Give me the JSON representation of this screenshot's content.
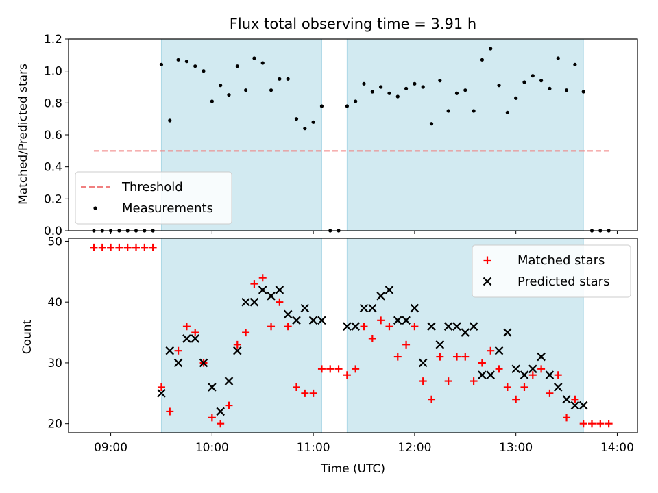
{
  "chart_data": [
    {
      "type": "scatter",
      "title": "Flux total observing time = 3.91 h",
      "ylabel": "Matched/Predicted stars",
      "xlabel": "",
      "x_unit": "time (UTC, hh:mm)",
      "xlim": [
        "08:35",
        "14:12"
      ],
      "ylim": [
        0,
        1.2
      ],
      "yticks": [
        "0.0",
        "0.2",
        "0.4",
        "0.6",
        "0.8",
        "1.0",
        "1.2"
      ],
      "grid": false,
      "legend": "lower-left",
      "shaded_intervals": [
        [
          "09:30",
          "11:05"
        ],
        [
          "11:20",
          "13:40"
        ]
      ],
      "shade_color": "#add8e6",
      "threshold": {
        "name": "Threshold",
        "value": 0.5,
        "x_range": [
          "08:50",
          "13:55"
        ],
        "color": "#f08080",
        "style": "dashed"
      },
      "series": [
        {
          "name": "Measurements",
          "color": "#000000",
          "marker": "dot",
          "points": [
            [
              "08:50",
              0
            ],
            [
              "08:55",
              0
            ],
            [
              "09:00",
              0
            ],
            [
              "09:05",
              0
            ],
            [
              "09:10",
              0
            ],
            [
              "09:15",
              0
            ],
            [
              "09:20",
              0
            ],
            [
              "09:25",
              0
            ],
            [
              "09:30",
              1.04
            ],
            [
              "09:35",
              0.69
            ],
            [
              "09:40",
              1.07
            ],
            [
              "09:45",
              1.06
            ],
            [
              "09:50",
              1.03
            ],
            [
              "09:55",
              1.0
            ],
            [
              "10:00",
              0.81
            ],
            [
              "10:05",
              0.91
            ],
            [
              "10:10",
              0.85
            ],
            [
              "10:15",
              1.03
            ],
            [
              "10:20",
              0.88
            ],
            [
              "10:25",
              1.08
            ],
            [
              "10:30",
              1.05
            ],
            [
              "10:35",
              0.88
            ],
            [
              "10:40",
              0.95
            ],
            [
              "10:45",
              0.95
            ],
            [
              "10:50",
              0.7
            ],
            [
              "10:55",
              0.64
            ],
            [
              "11:00",
              0.68
            ],
            [
              "11:05",
              0.78
            ],
            [
              "11:10",
              0
            ],
            [
              "11:15",
              0
            ],
            [
              "11:20",
              0.78
            ],
            [
              "11:25",
              0.81
            ],
            [
              "11:30",
              0.92
            ],
            [
              "11:35",
              0.87
            ],
            [
              "11:40",
              0.9
            ],
            [
              "11:45",
              0.86
            ],
            [
              "11:50",
              0.84
            ],
            [
              "11:55",
              0.89
            ],
            [
              "12:00",
              0.92
            ],
            [
              "12:05",
              0.9
            ],
            [
              "12:10",
              0.67
            ],
            [
              "12:15",
              0.94
            ],
            [
              "12:20",
              0.75
            ],
            [
              "12:25",
              0.86
            ],
            [
              "12:30",
              0.88
            ],
            [
              "12:35",
              0.75
            ],
            [
              "12:40",
              1.07
            ],
            [
              "12:45",
              1.14
            ],
            [
              "12:50",
              0.91
            ],
            [
              "12:55",
              0.74
            ],
            [
              "13:00",
              0.83
            ],
            [
              "13:05",
              0.93
            ],
            [
              "13:10",
              0.97
            ],
            [
              "13:15",
              0.94
            ],
            [
              "13:20",
              0.89
            ],
            [
              "13:25",
              1.08
            ],
            [
              "13:30",
              0.88
            ],
            [
              "13:35",
              1.04
            ],
            [
              "13:40",
              0.87
            ],
            [
              "13:45",
              0
            ],
            [
              "13:50",
              0
            ],
            [
              "13:55",
              0
            ]
          ]
        }
      ]
    },
    {
      "type": "scatter",
      "title": "",
      "ylabel": "Count",
      "xlabel": "Time (UTC)",
      "xlim": [
        "08:35",
        "14:12"
      ],
      "xticks": [
        "09:00",
        "10:00",
        "11:00",
        "12:00",
        "13:00",
        "14:00"
      ],
      "ylim": [
        18.5,
        50.5
      ],
      "yticks": [
        "20",
        "30",
        "40",
        "50"
      ],
      "grid": false,
      "legend": "top-right",
      "shaded_intervals": [
        [
          "09:30",
          "11:05"
        ],
        [
          "11:20",
          "13:40"
        ]
      ],
      "shade_color": "#add8e6",
      "series": [
        {
          "name": "Matched stars",
          "color": "#ff0000",
          "marker": "plus",
          "points": [
            [
              "08:50",
              49
            ],
            [
              "08:55",
              49
            ],
            [
              "09:00",
              49
            ],
            [
              "09:05",
              49
            ],
            [
              "09:10",
              49
            ],
            [
              "09:15",
              49
            ],
            [
              "09:20",
              49
            ],
            [
              "09:25",
              49
            ],
            [
              "09:30",
              26
            ],
            [
              "09:35",
              22
            ],
            [
              "09:40",
              32
            ],
            [
              "09:45",
              36
            ],
            [
              "09:50",
              35
            ],
            [
              "09:55",
              30
            ],
            [
              "10:00",
              21
            ],
            [
              "10:05",
              20
            ],
            [
              "10:10",
              23
            ],
            [
              "10:15",
              33
            ],
            [
              "10:20",
              35
            ],
            [
              "10:25",
              43
            ],
            [
              "10:30",
              44
            ],
            [
              "10:35",
              36
            ],
            [
              "10:40",
              40
            ],
            [
              "10:45",
              36
            ],
            [
              "10:50",
              26
            ],
            [
              "10:55",
              25
            ],
            [
              "11:00",
              25
            ],
            [
              "11:05",
              29
            ],
            [
              "11:10",
              29
            ],
            [
              "11:15",
              29
            ],
            [
              "11:20",
              28
            ],
            [
              "11:25",
              29
            ],
            [
              "11:30",
              36
            ],
            [
              "11:35",
              34
            ],
            [
              "11:40",
              37
            ],
            [
              "11:45",
              36
            ],
            [
              "11:50",
              31
            ],
            [
              "11:55",
              33
            ],
            [
              "12:00",
              36
            ],
            [
              "12:05",
              27
            ],
            [
              "12:10",
              24
            ],
            [
              "12:15",
              31
            ],
            [
              "12:20",
              27
            ],
            [
              "12:25",
              31
            ],
            [
              "12:30",
              31
            ],
            [
              "12:35",
              27
            ],
            [
              "12:40",
              30
            ],
            [
              "12:45",
              32
            ],
            [
              "12:50",
              29
            ],
            [
              "12:55",
              26
            ],
            [
              "13:00",
              24
            ],
            [
              "13:05",
              26
            ],
            [
              "13:10",
              28
            ],
            [
              "13:15",
              29
            ],
            [
              "13:20",
              25
            ],
            [
              "13:25",
              28
            ],
            [
              "13:30",
              21
            ],
            [
              "13:35",
              24
            ],
            [
              "13:40",
              20
            ],
            [
              "13:45",
              20
            ],
            [
              "13:50",
              20
            ],
            [
              "13:55",
              20
            ]
          ]
        },
        {
          "name": "Predicted stars",
          "color": "#000000",
          "marker": "x",
          "points": [
            [
              "09:30",
              25
            ],
            [
              "09:35",
              32
            ],
            [
              "09:40",
              30
            ],
            [
              "09:45",
              34
            ],
            [
              "09:50",
              34
            ],
            [
              "09:55",
              30
            ],
            [
              "10:00",
              26
            ],
            [
              "10:05",
              22
            ],
            [
              "10:10",
              27
            ],
            [
              "10:15",
              32
            ],
            [
              "10:20",
              40
            ],
            [
              "10:25",
              40
            ],
            [
              "10:30",
              42
            ],
            [
              "10:35",
              41
            ],
            [
              "10:40",
              42
            ],
            [
              "10:45",
              38
            ],
            [
              "10:50",
              37
            ],
            [
              "10:55",
              39
            ],
            [
              "11:00",
              37
            ],
            [
              "11:05",
              37
            ],
            [
              "11:20",
              36
            ],
            [
              "11:25",
              36
            ],
            [
              "11:30",
              39
            ],
            [
              "11:35",
              39
            ],
            [
              "11:40",
              41
            ],
            [
              "11:45",
              42
            ],
            [
              "11:50",
              37
            ],
            [
              "11:55",
              37
            ],
            [
              "12:00",
              39
            ],
            [
              "12:05",
              30
            ],
            [
              "12:10",
              36
            ],
            [
              "12:15",
              33
            ],
            [
              "12:20",
              36
            ],
            [
              "12:25",
              36
            ],
            [
              "12:30",
              35
            ],
            [
              "12:35",
              36
            ],
            [
              "12:40",
              28
            ],
            [
              "12:45",
              28
            ],
            [
              "12:50",
              32
            ],
            [
              "12:55",
              35
            ],
            [
              "13:00",
              29
            ],
            [
              "13:05",
              28
            ],
            [
              "13:10",
              29
            ],
            [
              "13:15",
              31
            ],
            [
              "13:20",
              28
            ],
            [
              "13:25",
              26
            ],
            [
              "13:30",
              24
            ],
            [
              "13:35",
              23
            ],
            [
              "13:40",
              23
            ]
          ]
        }
      ]
    }
  ]
}
